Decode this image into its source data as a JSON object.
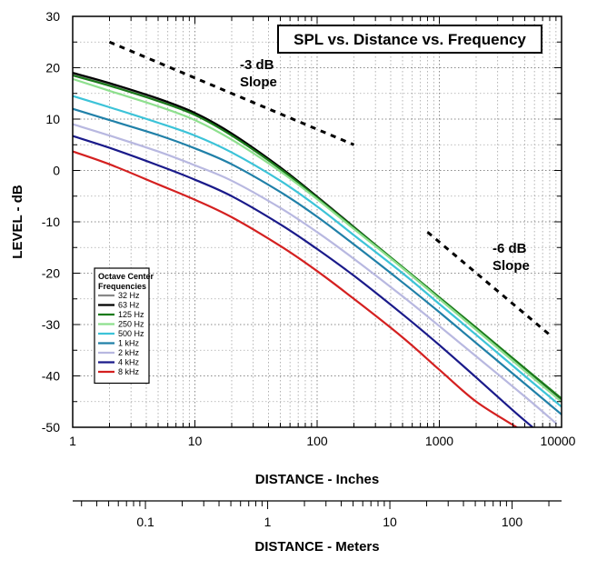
{
  "chart_data": {
    "type": "line",
    "title": "SPL vs. Distance vs. Frequency",
    "xlabel": "DISTANCE - Inches",
    "x2label": "DISTANCE - Meters",
    "ylabel": "LEVEL - dB",
    "xscale": "log",
    "xlim": [
      1,
      10000
    ],
    "ylim": [
      -50,
      30
    ],
    "x_ticks": [
      1,
      10,
      100,
      1000,
      10000
    ],
    "x_tick_labels": [
      "1",
      "10",
      "100",
      "1000",
      "10000"
    ],
    "x2_ticks": [
      0.1,
      1,
      10,
      100
    ],
    "x2_tick_labels": [
      "0.1",
      "1",
      "10",
      "100"
    ],
    "y_ticks": [
      -50,
      -40,
      -30,
      -20,
      -10,
      0,
      10,
      20,
      30
    ],
    "y_tick_labels": [
      "-50",
      "-40",
      "-30",
      "-20",
      "-10",
      "0",
      "10",
      "20",
      "30"
    ],
    "grid": true,
    "legend": {
      "title": "Octave Center Frequencies",
      "placement": "bottom-left"
    },
    "annotations": [
      {
        "text": "-3 dB Slope",
        "line_x": [
          2,
          200
        ],
        "line_y": [
          25,
          5
        ]
      },
      {
        "text": "-6 dB Slope",
        "line_x": [
          800,
          8000
        ],
        "line_y": [
          -12,
          -32
        ]
      }
    ],
    "series": [
      {
        "name": "32 Hz",
        "color": "#888888",
        "x": [
          1,
          2,
          5,
          10,
          20,
          50,
          100,
          200,
          500,
          1000,
          2000,
          5000,
          10000
        ],
        "y": [
          18.8,
          16.8,
          13.8,
          11.0,
          7.0,
          0.5,
          -5.2,
          -11.1,
          -19.0,
          -25.0,
          -31.0,
          -39.0,
          -45.0
        ]
      },
      {
        "name": "63 Hz",
        "color": "#000000",
        "x": [
          1,
          2,
          5,
          10,
          20,
          50,
          100,
          200,
          500,
          1000,
          2000,
          5000,
          10000
        ],
        "y": [
          19.0,
          17.0,
          14.0,
          11.2,
          7.2,
          0.6,
          -5.1,
          -11.0,
          -18.9,
          -24.9,
          -30.9,
          -38.9,
          -44.9
        ]
      },
      {
        "name": "125 Hz",
        "color": "#1a7a1a",
        "x": [
          1,
          2,
          5,
          10,
          20,
          50,
          100,
          200,
          500,
          1000,
          2000,
          5000,
          10000
        ],
        "y": [
          18.5,
          16.5,
          13.5,
          10.8,
          6.8,
          0.3,
          -5.3,
          -11.1,
          -18.8,
          -24.7,
          -30.6,
          -38.5,
          -44.4
        ]
      },
      {
        "name": "250 Hz",
        "color": "#8ee08e",
        "x": [
          1,
          2,
          5,
          10,
          20,
          50,
          100,
          200,
          500,
          1000,
          2000,
          5000,
          10000
        ],
        "y": [
          17.8,
          15.5,
          12.5,
          9.8,
          6.0,
          -0.2,
          -5.6,
          -11.4,
          -19.0,
          -25.0,
          -31.0,
          -39.0,
          -45.0
        ]
      },
      {
        "name": "500 Hz",
        "color": "#3cc3d8",
        "x": [
          1,
          2,
          5,
          10,
          20,
          50,
          100,
          200,
          500,
          1000,
          2000,
          5000,
          10000
        ],
        "y": [
          14.5,
          12.3,
          9.3,
          6.8,
          3.5,
          -2.0,
          -7.0,
          -12.6,
          -20.0,
          -26.0,
          -32.0,
          -40.0,
          -46.0
        ]
      },
      {
        "name": "1 kHz",
        "color": "#2080a8",
        "x": [
          1,
          2,
          5,
          10,
          20,
          50,
          100,
          200,
          500,
          1000,
          2000,
          5000,
          10000
        ],
        "y": [
          12.0,
          9.8,
          6.9,
          4.3,
          1.2,
          -4.2,
          -9.0,
          -14.4,
          -21.8,
          -27.6,
          -33.6,
          -41.5,
          -47.5
        ]
      },
      {
        "name": "2 kHz",
        "color": "#b8b8e0",
        "x": [
          1,
          2,
          5,
          10,
          20,
          50,
          100,
          200,
          500,
          1000,
          2000,
          5000,
          9000
        ],
        "y": [
          9.0,
          6.8,
          3.7,
          1.0,
          -2.0,
          -7.3,
          -12.0,
          -17.2,
          -24.5,
          -30.3,
          -36.2,
          -44.0,
          -49.2
        ]
      },
      {
        "name": "4 kHz",
        "color": "#1a1a8a",
        "x": [
          1,
          2,
          5,
          10,
          20,
          50,
          100,
          200,
          500,
          1000,
          2000,
          4000,
          5800
        ],
        "y": [
          6.7,
          4.4,
          1.0,
          -1.8,
          -5.0,
          -10.5,
          -15.3,
          -20.5,
          -28.0,
          -34.0,
          -40.3,
          -46.7,
          -50.0
        ]
      },
      {
        "name": "8 kHz",
        "color": "#d42020",
        "x": [
          1,
          2,
          5,
          10,
          20,
          50,
          100,
          200,
          500,
          1000,
          2000,
          4300
        ],
        "y": [
          3.7,
          1.2,
          -2.7,
          -5.7,
          -9.1,
          -14.7,
          -19.6,
          -25.0,
          -32.5,
          -38.8,
          -45.0,
          -50.0
        ]
      }
    ]
  }
}
